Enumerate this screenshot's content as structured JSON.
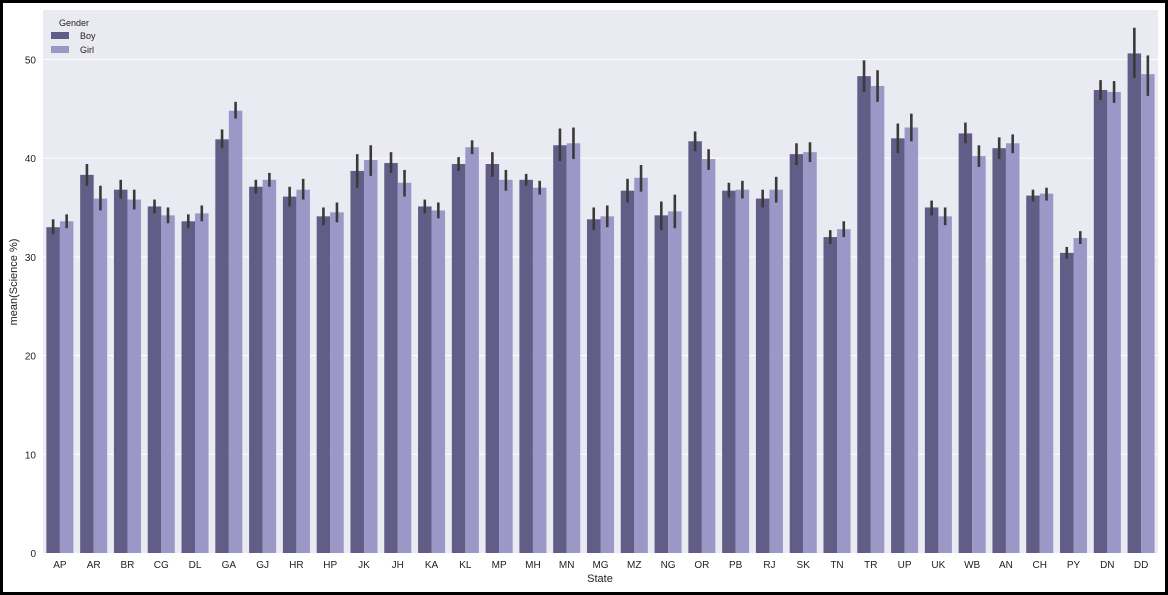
{
  "chart_data": {
    "type": "bar",
    "xlabel": "State",
    "ylabel": "mean(Science %)",
    "ylim": [
      0,
      55
    ],
    "yticks": [
      0,
      10,
      20,
      30,
      40,
      50
    ],
    "grid": true,
    "legend_title": "Gender",
    "legend_position": "top-left",
    "colors": {
      "background": "#eaeaf2",
      "grid": "#ffffff",
      "error_bar": "#3a3a3a"
    },
    "categories": [
      "AP",
      "AR",
      "BR",
      "CG",
      "DL",
      "GA",
      "GJ",
      "HR",
      "HP",
      "JK",
      "JH",
      "KA",
      "KL",
      "MP",
      "MH",
      "MN",
      "MG",
      "MZ",
      "NG",
      "OR",
      "PB",
      "RJ",
      "SK",
      "TN",
      "TR",
      "UP",
      "UK",
      "WB",
      "AN",
      "CH",
      "PY",
      "DN",
      "DD"
    ],
    "series": [
      {
        "name": "Boy",
        "color": "#625d86",
        "values": [
          33.0,
          38.3,
          36.8,
          35.1,
          33.6,
          41.9,
          37.1,
          36.1,
          34.1,
          38.7,
          39.5,
          35.1,
          39.4,
          39.4,
          37.8,
          41.3,
          33.8,
          36.7,
          34.2,
          41.7,
          36.7,
          35.9,
          40.4,
          32.0,
          48.3,
          42.0,
          35.0,
          42.5,
          41.0,
          36.2,
          30.4,
          46.9,
          50.6
        ],
        "errors": [
          [
            32.3,
            33.8
          ],
          [
            37.2,
            39.4
          ],
          [
            35.9,
            37.8
          ],
          [
            34.4,
            35.8
          ],
          [
            32.9,
            34.3
          ],
          [
            41.0,
            42.9
          ],
          [
            36.4,
            37.8
          ],
          [
            35.1,
            37.1
          ],
          [
            33.2,
            35.0
          ],
          [
            37.0,
            40.4
          ],
          [
            38.5,
            40.6
          ],
          [
            34.4,
            35.8
          ],
          [
            38.7,
            40.1
          ],
          [
            38.1,
            40.6
          ],
          [
            37.2,
            38.4
          ],
          [
            39.7,
            43.0
          ],
          [
            32.7,
            35.0
          ],
          [
            35.5,
            37.9
          ],
          [
            32.7,
            35.6
          ],
          [
            40.7,
            42.7
          ],
          [
            36.0,
            37.5
          ],
          [
            35.0,
            36.8
          ],
          [
            39.3,
            41.5
          ],
          [
            31.3,
            32.7
          ],
          [
            46.7,
            49.9
          ],
          [
            40.5,
            43.5
          ],
          [
            34.2,
            35.7
          ],
          [
            41.5,
            43.6
          ],
          [
            39.9,
            42.1
          ],
          [
            35.6,
            36.8
          ],
          [
            29.8,
            31.0
          ],
          [
            45.9,
            47.9
          ],
          [
            48.1,
            53.2
          ]
        ]
      },
      {
        "name": "Girl",
        "color": "#9b97c7",
        "values": [
          33.6,
          35.9,
          35.8,
          34.2,
          34.4,
          44.8,
          37.8,
          36.8,
          34.5,
          39.8,
          37.5,
          34.7,
          41.1,
          37.8,
          37.0,
          41.5,
          34.1,
          38.0,
          34.6,
          39.9,
          36.8,
          36.8,
          40.6,
          32.8,
          47.3,
          43.1,
          34.1,
          40.2,
          41.5,
          36.4,
          31.9,
          46.7,
          48.5
        ],
        "errors": [
          [
            32.9,
            34.3
          ],
          [
            34.7,
            37.2
          ],
          [
            34.8,
            36.8
          ],
          [
            33.4,
            35.0
          ],
          [
            33.6,
            35.2
          ],
          [
            44.0,
            45.7
          ],
          [
            37.1,
            38.5
          ],
          [
            35.8,
            37.9
          ],
          [
            33.5,
            35.5
          ],
          [
            38.2,
            41.3
          ],
          [
            36.1,
            38.8
          ],
          [
            33.9,
            35.5
          ],
          [
            40.4,
            41.8
          ],
          [
            36.7,
            38.8
          ],
          [
            36.3,
            37.7
          ],
          [
            39.9,
            43.1
          ],
          [
            33.0,
            35.2
          ],
          [
            36.6,
            39.3
          ],
          [
            32.9,
            36.3
          ],
          [
            38.8,
            40.9
          ],
          [
            35.9,
            37.7
          ],
          [
            35.5,
            38.1
          ],
          [
            39.6,
            41.6
          ],
          [
            32.0,
            33.6
          ],
          [
            45.7,
            48.9
          ],
          [
            41.7,
            44.5
          ],
          [
            33.2,
            35.0
          ],
          [
            39.1,
            41.3
          ],
          [
            40.5,
            42.4
          ],
          [
            35.7,
            37.0
          ],
          [
            31.3,
            32.6
          ],
          [
            45.6,
            47.8
          ],
          [
            46.3,
            50.4
          ]
        ]
      }
    ]
  }
}
